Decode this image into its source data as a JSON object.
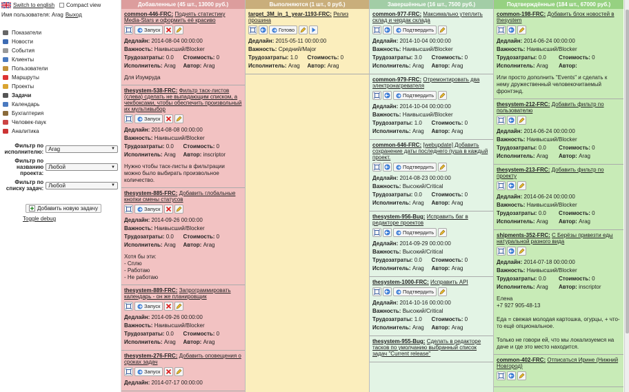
{
  "header": {
    "lang_link": "Switch to english",
    "compact_label": "Compact view",
    "user_prefix": "Имя пользователя: Arag",
    "logout": "Выход"
  },
  "nav": [
    {
      "label": "Показатели",
      "icon": "dashboard-icon"
    },
    {
      "label": "Новости",
      "icon": "news-icon"
    },
    {
      "label": "События",
      "icon": "events-icon"
    },
    {
      "label": "Клиенты",
      "icon": "clients-icon"
    },
    {
      "label": "Пользователи",
      "icon": "users-icon"
    },
    {
      "label": "Маршруты",
      "icon": "routes-icon"
    },
    {
      "label": "Проекты",
      "icon": "projects-icon"
    },
    {
      "label": "Задачи",
      "icon": "tasks-icon",
      "active": true
    },
    {
      "label": "Календарь",
      "icon": "calendar-icon"
    },
    {
      "label": "Бухгалтерия",
      "icon": "accounting-icon"
    },
    {
      "label": "Человек-паук",
      "icon": "spider-icon"
    },
    {
      "label": "Аналитика",
      "icon": "analytics-icon"
    }
  ],
  "filters": [
    {
      "label": "Фильтр по исполнителю:",
      "value": "Arag"
    },
    {
      "label": "Фильтр по названию проекта:",
      "value": "Любой"
    },
    {
      "label": "Фильтр по списку задач:",
      "value": "Любой"
    }
  ],
  "add_task": "Добавить новую задачу",
  "toggle_debug": "Toggle debug",
  "labels": {
    "deadline": "Дедлайн:",
    "priority": "Важность:",
    "effort": "Трудозатраты:",
    "cost": "Стоимость:",
    "assignee": "Исполнитель:",
    "author": "Автор:"
  },
  "colors": {
    "added": "#f2c2c2",
    "in_progress": "#fbeebd",
    "done": "#e3f4e5",
    "confirmed": "#c8ebb7"
  },
  "columns": [
    {
      "title": "Добавленные (45 шт., 13000 руб.)",
      "cards": [
        {
          "id": "common-446-FRC:",
          "name": "Поднять статистику Media-Stars и оформить её красиво",
          "action": "Запуск",
          "tools": "added",
          "deadline": "2014-08-04 00:00:00",
          "priority": "Наивысший/Blocker",
          "effort": "0.0",
          "cost": "0",
          "assignee": "Arag",
          "author": "Arag",
          "desc": "Для Изумруда"
        },
        {
          "id": "thesystem-538-FRC:",
          "name": "Фильтр таск-листов (слева) сделать не выпадающим списком, а чекбоксами, чтобы обеспечить произвольный их мультивыбор",
          "action": "Запуск",
          "tools": "added",
          "deadline": "2014-08-08 00:00:00",
          "priority": "Наивысший/Blocker",
          "effort": "0.0",
          "cost": "0",
          "assignee": "Arag",
          "author": "inscriptor",
          "desc": "Нужно чтобы таск-листы в фильтрации можно было выбирать произвольное количество."
        },
        {
          "id": "thesystem-885-FRC:",
          "name": "Добавить глобальные кнопки смены статусов",
          "action": "Запуск",
          "tools": "added",
          "deadline": "2014-09-26 00:00:00",
          "priority": "Наивысший/Blocker",
          "effort": "0.0",
          "cost": "0",
          "assignee": "Arag",
          "author": "Arag",
          "desc": "Хотя бы эти:\n- Сплю\n- Работаю\n- Не работаю"
        },
        {
          "id": "thesystem-889-FRC:",
          "name": "Запрограммировать календарь - он же планировщик",
          "action": "Запуск",
          "tools": "added",
          "deadline": "2014-09-26 00:00:00",
          "priority": "Наивысший/Blocker",
          "effort": "0.0",
          "cost": "0",
          "assignee": "Arag",
          "author": "Arag",
          "desc": ""
        },
        {
          "id": "thesystem-276-FRC:",
          "name": "Добавить оповещения о сроках задач",
          "action": "Запуск",
          "tools": "added",
          "deadline": "2014-07-17 00:00:00",
          "priority": "",
          "effort": "",
          "cost": "",
          "assignee": "",
          "author": "",
          "desc": ""
        }
      ]
    },
    {
      "title": "Выполняются (1 шт., 0 руб.)",
      "cards": [
        {
          "id": "target_3M_in_1_year-1193-FRC:",
          "name": "Релиз прошина",
          "action": "Готово",
          "tools": "progress",
          "deadline": "2015-05-11 00:00:00",
          "priority": "Средний/Major",
          "effort": "1.0",
          "cost": "0",
          "assignee": "Arag",
          "author": "Arag",
          "desc": ""
        }
      ]
    },
    {
      "title": "Завершённые (16 шт., 7500 руб.)",
      "cards": [
        {
          "id": "common-977-FRC:",
          "name": "Максимально утеплить склад и чердак склада",
          "action": "Подтвердить",
          "tools": "done",
          "deadline": "2014-10-04 00:00:00",
          "priority": "Наивысший/Blocker",
          "effort": "3.0",
          "cost": "0",
          "assignee": "Arag",
          "author": "Arag",
          "desc": ""
        },
        {
          "id": "common-979-FRC:",
          "name": "Отремонтировать два электронагревателя",
          "action": "Подтвердить",
          "tools": "done",
          "deadline": "2014-10-04 00:00:00",
          "priority": "Наивысший/Blocker",
          "effort": "1.0",
          "cost": "0",
          "assignee": "Arag",
          "author": "Arag",
          "desc": ""
        },
        {
          "id": "common-646-FRC:",
          "name": "[webupdate] Добавить сохранение даты последнего пуша в каждый проект.",
          "action": "Подтвердить",
          "tools": "done",
          "deadline": "2014-08-23 00:00:00",
          "priority": "Высокий/Critical",
          "effort": "0.0",
          "cost": "0",
          "assignee": "Arag",
          "author": "Arag",
          "desc": ""
        },
        {
          "id": "thesystem-956-Bug:",
          "name": "Исправить баг в редакторе проектов",
          "action": "Подтвердить",
          "tools": "done",
          "deadline": "2014-09-29 00:00:00",
          "priority": "Высокий/Critical",
          "effort": "0.0",
          "cost": "0",
          "assignee": "Arag",
          "author": "Arag",
          "desc": ""
        },
        {
          "id": "thesystem-1000-FRC:",
          "name": "Исправить API",
          "action": "Подтвердить",
          "tools": "done",
          "deadline": "2014-10-16 00:00:00",
          "priority": "Высокий/Critical",
          "effort": "1.0",
          "cost": "0",
          "assignee": "Arag",
          "author": "Arag",
          "desc": ""
        },
        {
          "id": "thesystem-955-Bug:",
          "name": "Сделать в редакторе тасков по умолчанию выбранный список задач \"Current release\"",
          "action": "",
          "tools": "none",
          "deadline": "",
          "priority": "",
          "effort": "",
          "cost": "",
          "assignee": "",
          "author": "",
          "desc": ""
        }
      ]
    },
    {
      "title": "Подтверждённые (184 шт., 67000 руб.)",
      "cards": [
        {
          "id": "common-198-FRC:",
          "name": "Добавить блок новостей в thesystem",
          "action": "",
          "tools": "confirmed",
          "deadline": "2014-06-24 00:00:00",
          "priority": "Наивысший/Blocker",
          "effort": "0.0",
          "cost": "0",
          "assignee": "Arag",
          "author": "",
          "desc": "Или просто дополнить \"Events\" и сделать к нему дружественный человекочитаемый фронтэнд."
        },
        {
          "id": "thesystem-212-FRC:",
          "name": "Добавить фильтр по пользователю",
          "action": "",
          "tools": "confirmed",
          "deadline": "2014-06-24 00:00:00",
          "priority": "Наивысший/Blocker",
          "effort": "0.0",
          "cost": "0",
          "assignee": "Arag",
          "author": "Arag",
          "desc": ""
        },
        {
          "id": "thesystem-213-FRC:",
          "name": "Добавить фильтр по проекту",
          "action": "",
          "tools": "confirmed",
          "deadline": "2014-06-24 00:00:00",
          "priority": "Наивысший/Blocker",
          "effort": "0.0",
          "cost": "0",
          "assignee": "Arag",
          "author": "Arag",
          "desc": ""
        },
        {
          "id": "shipments-352-FRC:",
          "name": "С Берёзы привезти еды натуральной разного вида",
          "action": "",
          "tools": "confirmed",
          "deadline": "2014-07-18 00:00:00",
          "priority": "Наивысший/Blocker",
          "effort": "0.0",
          "cost": "0",
          "assignee": "Arag",
          "author": "inscriptor",
          "desc": "Елена\n+7 927 905-48-13\n\nЕда = свежая молодая картошка, огурцы, + что-то ещё опциональное.\n\nТолько не говори ей, что мы локализуемся на даче и где это место находится."
        },
        {
          "id": "common-402-FRC:",
          "name": "Отписаться Ирине (Нижний Новгород)",
          "action": "",
          "tools": "confirmed",
          "deadline": "",
          "priority": "",
          "effort": "",
          "cost": "",
          "assignee": "",
          "author": "",
          "desc": ""
        }
      ]
    }
  ]
}
